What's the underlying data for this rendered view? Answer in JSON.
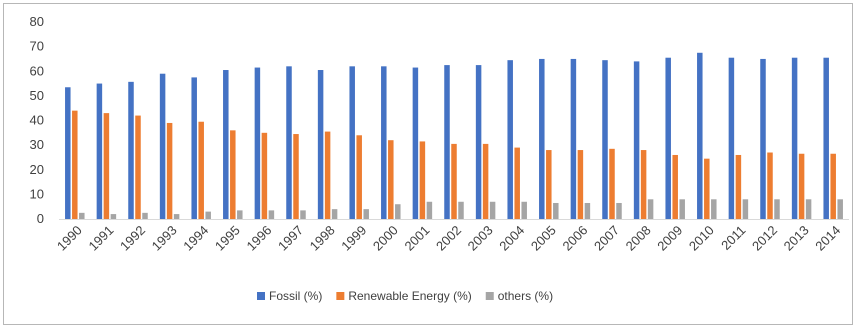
{
  "chart_data": {
    "type": "bar",
    "categories": [
      "1990",
      "1991",
      "1992",
      "1993",
      "1994",
      "1995",
      "1996",
      "1997",
      "1998",
      "1999",
      "2000",
      "2001",
      "2002",
      "2003",
      "2004",
      "2005",
      "2006",
      "2007",
      "2008",
      "2009",
      "2010",
      "2011",
      "2012",
      "2013",
      "2014"
    ],
    "series": [
      {
        "name": "Fossil (%)",
        "color": "#4472c4",
        "values": [
          53.5,
          55,
          55.7,
          59,
          57.5,
          60.5,
          61.5,
          62,
          60.5,
          62,
          62,
          61.5,
          62.5,
          62.5,
          64.5,
          65,
          65,
          64.5,
          64,
          65.5,
          67.5,
          65.5,
          65,
          65.5,
          65.5
        ]
      },
      {
        "name": "Renewable Energy (%)",
        "color": "#ed7d31",
        "values": [
          44,
          43,
          42,
          39,
          39.5,
          36,
          35,
          34.5,
          35.5,
          34,
          32,
          31.5,
          30.5,
          30.5,
          29,
          28,
          28,
          28.5,
          28,
          26,
          24.5,
          26,
          27,
          26.5,
          26.5
        ]
      },
      {
        "name": "others (%)",
        "color": "#a5a5a5",
        "values": [
          2.5,
          2,
          2.5,
          2,
          3,
          3.5,
          3.5,
          3.5,
          4,
          4,
          6,
          7,
          7,
          7,
          7,
          6.5,
          6.5,
          6.5,
          8,
          8,
          8,
          8,
          8,
          8,
          8
        ]
      }
    ],
    "y_ticks": [
      0,
      10,
      20,
      30,
      40,
      50,
      60,
      70,
      80
    ],
    "ylim": [
      0,
      80
    ],
    "grid": false,
    "legend_position": "bottom",
    "title": "",
    "xlabel": "",
    "ylabel": ""
  }
}
